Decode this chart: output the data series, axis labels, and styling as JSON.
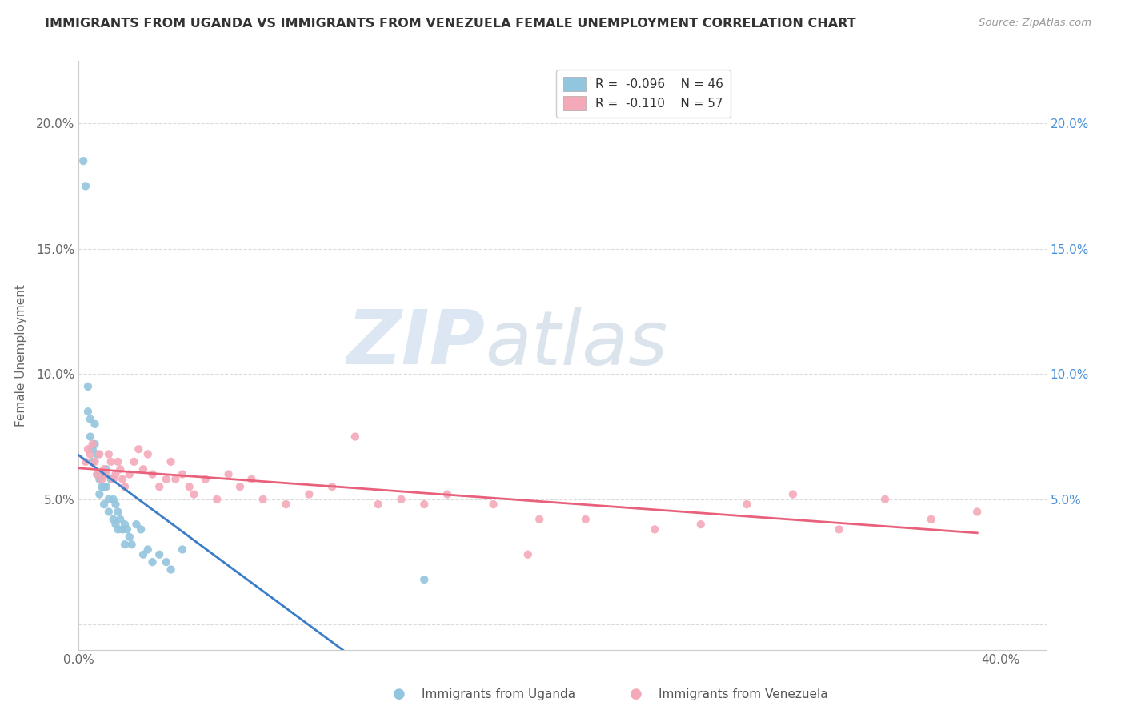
{
  "title": "IMMIGRANTS FROM UGANDA VS IMMIGRANTS FROM VENEZUELA FEMALE UNEMPLOYMENT CORRELATION CHART",
  "source": "Source: ZipAtlas.com",
  "ylabel": "Female Unemployment",
  "xlim": [
    0.0,
    0.42
  ],
  "ylim": [
    -0.01,
    0.225
  ],
  "yticks": [
    0.0,
    0.05,
    0.1,
    0.15,
    0.2
  ],
  "ytick_labels_left": [
    "",
    "5.0%",
    "10.0%",
    "15.0%",
    "20.0%"
  ],
  "ytick_labels_right": [
    "",
    "5.0%",
    "10.0%",
    "15.0%",
    "20.0%"
  ],
  "xticks": [
    0.0,
    0.4
  ],
  "xtick_labels": [
    "0.0%",
    "40.0%"
  ],
  "legend_r1": "R =  -0.096",
  "legend_n1": "N = 46",
  "legend_r2": "R =  -0.110",
  "legend_n2": "N = 57",
  "uganda_color": "#92C5DE",
  "venezuela_color": "#F4A9B8",
  "uganda_trend_color": "#3A7DC9",
  "venezuela_trend_color": "#E8607A",
  "background_color": "#ffffff",
  "grid_color": "#d8d8d8",
  "uganda_x": [
    0.002,
    0.003,
    0.004,
    0.004,
    0.005,
    0.005,
    0.006,
    0.006,
    0.007,
    0.007,
    0.008,
    0.008,
    0.009,
    0.009,
    0.01,
    0.01,
    0.011,
    0.011,
    0.012,
    0.012,
    0.013,
    0.013,
    0.014,
    0.015,
    0.015,
    0.016,
    0.016,
    0.017,
    0.017,
    0.018,
    0.019,
    0.02,
    0.02,
    0.021,
    0.022,
    0.023,
    0.025,
    0.027,
    0.028,
    0.03,
    0.032,
    0.035,
    0.038,
    0.04,
    0.045,
    0.15
  ],
  "uganda_y": [
    0.185,
    0.175,
    0.095,
    0.085,
    0.082,
    0.075,
    0.07,
    0.065,
    0.08,
    0.072,
    0.068,
    0.06,
    0.058,
    0.052,
    0.06,
    0.055,
    0.055,
    0.048,
    0.062,
    0.055,
    0.05,
    0.045,
    0.058,
    0.05,
    0.042,
    0.048,
    0.04,
    0.045,
    0.038,
    0.042,
    0.038,
    0.04,
    0.032,
    0.038,
    0.035,
    0.032,
    0.04,
    0.038,
    0.028,
    0.03,
    0.025,
    0.028,
    0.025,
    0.022,
    0.03,
    0.018
  ],
  "venezuela_x": [
    0.003,
    0.004,
    0.005,
    0.006,
    0.007,
    0.008,
    0.009,
    0.01,
    0.011,
    0.012,
    0.013,
    0.014,
    0.015,
    0.016,
    0.017,
    0.018,
    0.019,
    0.02,
    0.022,
    0.024,
    0.026,
    0.028,
    0.03,
    0.032,
    0.035,
    0.038,
    0.04,
    0.042,
    0.045,
    0.048,
    0.05,
    0.055,
    0.06,
    0.065,
    0.07,
    0.075,
    0.08,
    0.09,
    0.1,
    0.11,
    0.12,
    0.13,
    0.14,
    0.15,
    0.16,
    0.18,
    0.2,
    0.22,
    0.25,
    0.27,
    0.29,
    0.31,
    0.33,
    0.35,
    0.37,
    0.39,
    0.195
  ],
  "venezuela_y": [
    0.065,
    0.07,
    0.068,
    0.072,
    0.065,
    0.06,
    0.068,
    0.058,
    0.062,
    0.06,
    0.068,
    0.065,
    0.058,
    0.06,
    0.065,
    0.062,
    0.058,
    0.055,
    0.06,
    0.065,
    0.07,
    0.062,
    0.068,
    0.06,
    0.055,
    0.058,
    0.065,
    0.058,
    0.06,
    0.055,
    0.052,
    0.058,
    0.05,
    0.06,
    0.055,
    0.058,
    0.05,
    0.048,
    0.052,
    0.055,
    0.075,
    0.048,
    0.05,
    0.048,
    0.052,
    0.048,
    0.042,
    0.042,
    0.038,
    0.04,
    0.048,
    0.052,
    0.038,
    0.05,
    0.042,
    0.045,
    0.028
  ],
  "watermark_zip_color": "#C8D8E8",
  "watermark_atlas_color": "#B8C8D8"
}
